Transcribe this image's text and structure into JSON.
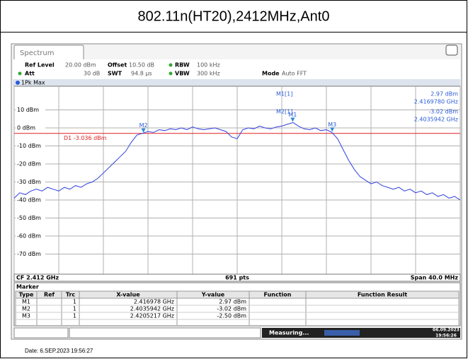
{
  "title": "802.11n(HT20),2412MHz,Ant0",
  "tab": "Spectrum",
  "header": {
    "row1": [
      {
        "label": "Ref Level",
        "value": "20.00 dBm"
      },
      {
        "label": "Offset",
        "value": "10.50 dB"
      },
      {
        "label": "RBW",
        "value": "100 kHz"
      }
    ],
    "row2": [
      {
        "label": "Att",
        "value": "30 dB"
      },
      {
        "label": "SWT",
        "value": "94.8 µs"
      },
      {
        "label": "VBW",
        "value": "300 kHz"
      },
      {
        "label": "Mode",
        "value": "Auto FFT"
      }
    ]
  },
  "chart_data": {
    "type": "line",
    "trace_label": "1Pk Max",
    "xlim": [
      2392,
      2432
    ],
    "xticks": [
      2392,
      2396,
      2400,
      2404,
      2408,
      2412,
      2416,
      2420,
      2424,
      2428,
      2432
    ],
    "ylim": [
      -80,
      20
    ],
    "yticks": [
      {
        "value": 10,
        "label": "10 dBm"
      },
      {
        "value": 0,
        "label": "0 dBm"
      },
      {
        "value": -10,
        "label": "-10 dBm"
      },
      {
        "value": -20,
        "label": "-20 dBm"
      },
      {
        "value": -30,
        "label": "-30 dBm"
      },
      {
        "value": -40,
        "label": "-40 dBm"
      },
      {
        "value": -50,
        "label": "-50 dBm"
      },
      {
        "value": -60,
        "label": "-60 dBm"
      },
      {
        "value": -70,
        "label": "-70 dBm"
      }
    ],
    "series": [
      {
        "color": "#3040e0",
        "x": [
          2392,
          2392.5,
          2393,
          2393.5,
          2394,
          2394.5,
          2395,
          2395.5,
          2396,
          2396.5,
          2397,
          2397.5,
          2398,
          2398.5,
          2399,
          2399.5,
          2400,
          2400.5,
          2401,
          2401.5,
          2402,
          2402.5,
          2403,
          2403.5,
          2404,
          2404.5,
          2405,
          2405.5,
          2406,
          2406.5,
          2407,
          2407.5,
          2408,
          2408.5,
          2409,
          2409.5,
          2410,
          2410.5,
          2411,
          2411.5,
          2412,
          2412.5,
          2413,
          2413.5,
          2414,
          2414.5,
          2415,
          2415.5,
          2416,
          2416.5,
          2417,
          2417.5,
          2418,
          2418.5,
          2419,
          2419.5,
          2420,
          2420.5,
          2421,
          2421.5,
          2422,
          2422.5,
          2423,
          2423.5,
          2424,
          2424.5,
          2425,
          2425.5,
          2426,
          2426.5,
          2427,
          2427.5,
          2428,
          2428.5,
          2429,
          2429.5,
          2430,
          2430.5,
          2431,
          2431.5,
          2432
        ],
        "values": [
          -39,
          -36,
          -37,
          -35,
          -34,
          -35,
          -33,
          -34,
          -35,
          -33,
          -34,
          -32,
          -33,
          -31,
          -30,
          -28,
          -25,
          -22,
          -19,
          -16,
          -13,
          -8,
          -4,
          -3,
          -2,
          -2.5,
          -1,
          -1.5,
          -0.5,
          -1,
          0,
          -1,
          0.5,
          -0.5,
          -1,
          -0.5,
          0,
          -1,
          -2,
          -5,
          -6,
          -1,
          0,
          -0.5,
          1,
          0,
          -0.5,
          0.5,
          1,
          2,
          3,
          1,
          -0.5,
          -1,
          0,
          -1.5,
          -1,
          -2.5,
          -6,
          -12,
          -18,
          -23,
          -27,
          -29,
          -31,
          -30,
          -32,
          -33,
          -34,
          -33,
          -35,
          -34,
          -36,
          -35,
          -37,
          -36,
          -38,
          -37,
          -39,
          -38,
          -40
        ]
      }
    ],
    "display_line": {
      "label": "D1 -3.036 dBm",
      "value": -3.036,
      "color": "#e02020"
    },
    "markers": [
      {
        "label": "M1",
        "x": 2416.978,
        "y": 2.97
      },
      {
        "label": "M2",
        "x": 2403.5942,
        "y": -3.02
      },
      {
        "label": "M3",
        "x": 2420.5217,
        "y": -2.5
      }
    ],
    "marker_info": [
      {
        "name": "M1[1]",
        "level": "2.97 dBm",
        "freq": "2.4169780 GHz"
      },
      {
        "name": "M2[1]",
        "level": "-3.02 dBm",
        "freq": "2.4035942 GHz"
      }
    ],
    "footer": {
      "center": "CF 2.412 GHz",
      "points": "691 pts",
      "span": "Span 40.0 MHz"
    }
  },
  "marker_table": {
    "title": "Marker",
    "columns": [
      "Type",
      "Ref",
      "Trc",
      "X-value",
      "Y-value",
      "Function",
      "Function Result"
    ],
    "rows": [
      [
        "M1",
        "",
        "1",
        "2.416978 GHz",
        "2.97 dBm",
        "",
        ""
      ],
      [
        "M2",
        "",
        "1",
        "2.4035942 GHz",
        "-3.02 dBm",
        "",
        ""
      ],
      [
        "M3",
        "",
        "1",
        "2.4205217 GHz",
        "-2.50 dBm",
        "",
        ""
      ]
    ]
  },
  "status": {
    "state": "Measuring...",
    "date": "06.09.2023",
    "time": "19:56:26"
  },
  "footer_date": "Date: 6.SEP.2023  19:56:27"
}
